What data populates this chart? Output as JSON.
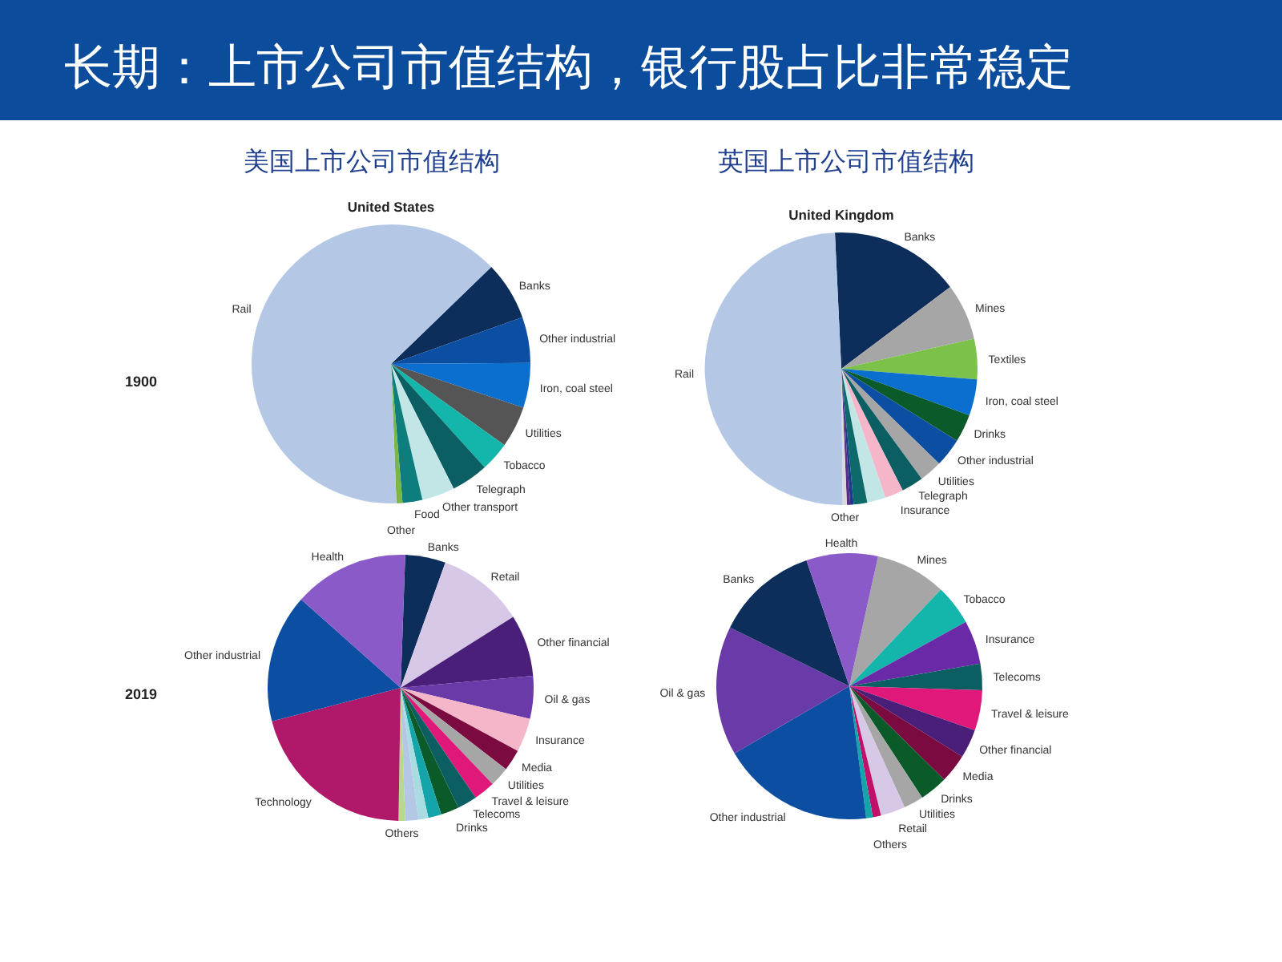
{
  "chart_data": [
    {
      "type": "pie",
      "title": "United States",
      "annotations": [
        "长期：上市公司市值结构，银行股占比非常稳定",
        "美国上市公司市值结构",
        "1900"
      ],
      "categories": [
        "Banks",
        "Other industrial",
        "Iron, coal steel",
        "Utilities",
        "Tobacco",
        "Telegraph",
        "Other transport",
        "Food",
        "Other",
        "Rail"
      ],
      "values": [
        6.8,
        5.3,
        5.2,
        4.8,
        3.4,
        4.3,
        3.8,
        2.3,
        0.7,
        63.4
      ],
      "colors": [
        "#0d2d5a",
        "#0c4ea2",
        "#0a6fcf",
        "#555555",
        "#14b5aa",
        "#0b5f63",
        "#c2e6e6",
        "#0e7d7d",
        "#7ab648",
        "#b4c8e6"
      ]
    },
    {
      "type": "pie",
      "title": "United Kingdom",
      "annotations": [
        "英国上市公司市值结构"
      ],
      "categories": [
        "Banks",
        "Mines",
        "Textiles",
        "Iron, coal steel",
        "Drinks",
        "Other industrial",
        "Utilities",
        "Telegraph",
        "Insurance",
        null,
        null,
        null,
        null,
        "Other",
        "Rail"
      ],
      "values": [
        15.5,
        6.7,
        4.8,
        4.3,
        3.3,
        3.4,
        2.7,
        2.6,
        2.2,
        2.2,
        1.6,
        0.4,
        0.4,
        0.5,
        49.4
      ],
      "colors": [
        "#0d2d5a",
        "#a6a6a6",
        "#7cc24a",
        "#0a6fcf",
        "#0b5a2a",
        "#0c4ea2",
        "#a6a6a6",
        "#0b5f63",
        "#f4b6c8",
        "#c2e6e6",
        "#0e6a6a",
        "#1a3a8a",
        "#5b2d8a",
        "#d9d9d9",
        "#b4c8e6"
      ]
    },
    {
      "type": "pie",
      "annotations": [
        "2019"
      ],
      "categories": [
        "Banks",
        "Retail",
        "Other financial",
        "Oil & gas",
        "Insurance",
        "Media",
        "Utilities",
        "Travel & leisure",
        "Telecoms",
        "Drinks",
        null,
        null,
        null,
        "Others",
        "Technology",
        "Other industrial",
        "Health"
      ],
      "values": [
        4.9,
        10.6,
        7.5,
        5.2,
        4.1,
        2.6,
        2.4,
        2.6,
        2.4,
        2.2,
        1.6,
        1.2,
        1.6,
        0.8,
        20.7,
        15.6,
        14.0
      ],
      "colors": [
        "#0d2d5a",
        "#d8c8e8",
        "#4a1f7a",
        "#6a3aa8",
        "#f4b6c8",
        "#7a0a40",
        "#a6a6a6",
        "#e0187a",
        "#0b5f63",
        "#0b5a2a",
        "#14a5aa",
        "#a8dce0",
        "#b4c8e6",
        "#b8d88a",
        "#b0186a",
        "#0c4ea2",
        "#8a5ac8"
      ]
    },
    {
      "type": "pie",
      "categories": [
        "Mines",
        "Tobacco",
        "Insurance",
        "Telecoms",
        "Travel & leisure",
        "Other financial",
        "Media",
        "Drinks",
        "Utilities",
        "Retail",
        null,
        "Others",
        "Other industrial",
        "Oil & gas",
        "Banks",
        "Health"
      ],
      "values": [
        8.6,
        4.9,
        5.3,
        3.2,
        4.9,
        3.5,
        3.5,
        3.4,
        2.4,
        3.0,
        1.0,
        0.8,
        18.6,
        15.7,
        12.5,
        8.7
      ],
      "colors": [
        "#a6a6a6",
        "#14b5aa",
        "#6a2aa8",
        "#0b5f63",
        "#e0187a",
        "#4a1f7a",
        "#7a0a40",
        "#0b5a2a",
        "#a6a6a6",
        "#d8c8e8",
        "#c0106a",
        "#14a5aa",
        "#0c4ea2",
        "#6a3aa8",
        "#0d2d5a",
        "#8a5ac8"
      ]
    }
  ]
}
